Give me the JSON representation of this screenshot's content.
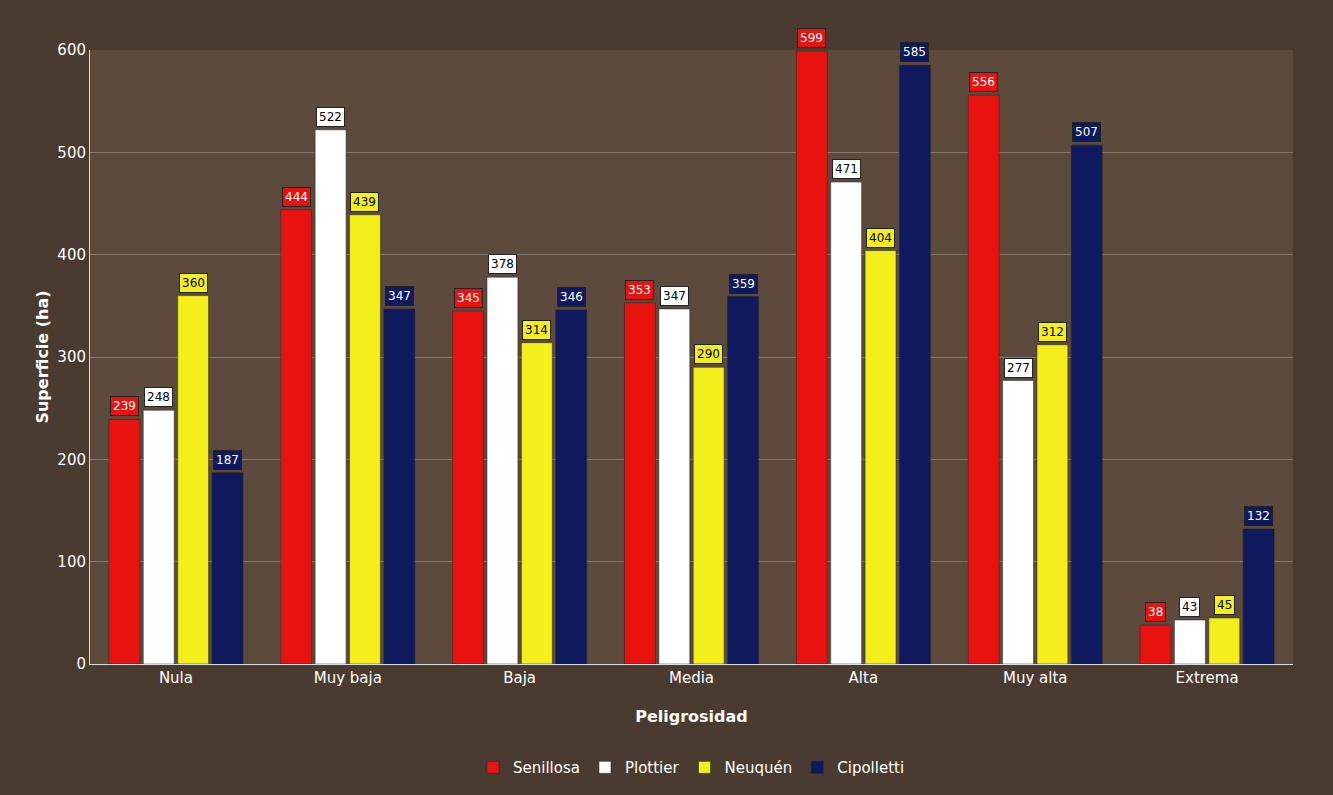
{
  "chart_data": {
    "type": "bar",
    "x_label": "Peligrosidad",
    "y_label": "Superficie (ha)",
    "categories": [
      "Nula",
      "Muy baja",
      "Baja",
      "Media",
      "Alta",
      "Muy alta",
      "Extrema"
    ],
    "series": [
      {
        "name": "Senillosa",
        "color": "#e8130f",
        "values": [
          239,
          444,
          345,
          353,
          599,
          556,
          38
        ]
      },
      {
        "name": "Plottier",
        "color": "#ffffff",
        "values": [
          248,
          522,
          378,
          347,
          471,
          277,
          43
        ]
      },
      {
        "name": "Neuquén",
        "color": "#f2ef1a",
        "values": [
          360,
          439,
          314,
          290,
          404,
          312,
          45
        ]
      },
      {
        "name": "Cipolletti",
        "color": "#0f1a5e",
        "values": [
          187,
          347,
          346,
          359,
          585,
          507,
          132
        ]
      }
    ],
    "ylim": [
      0,
      600
    ],
    "yticks": [
      0,
      100,
      200,
      300,
      400,
      500,
      600
    ],
    "grid": true,
    "data_labels": true,
    "legend": "bottom"
  }
}
